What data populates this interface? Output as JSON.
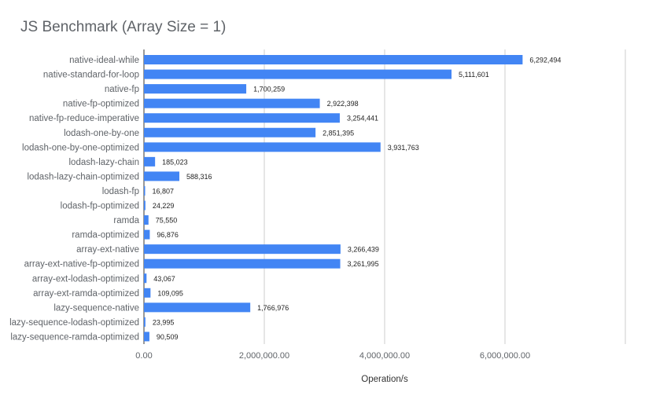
{
  "chart_data": {
    "type": "bar",
    "orientation": "horizontal",
    "title": "JS Benchmark (Array Size = 1)",
    "xlabel": "Operation/s",
    "ylabel": "",
    "xlim": [
      0,
      8000000
    ],
    "x_ticks": [
      0,
      2000000,
      4000000,
      6000000,
      8000000
    ],
    "x_tick_labels": [
      "0.00",
      "2,000,000.00",
      "4,000,000.00",
      "6,000,000.00",
      ""
    ],
    "grid": true,
    "legend": "none",
    "bar_color": "#4285f4",
    "categories": [
      "native-ideal-while",
      "native-standard-for-loop",
      "native-fp",
      "native-fp-optimized",
      "native-fp-reduce-imperative",
      "lodash-one-by-one",
      "lodash-one-by-one-optimized",
      "lodash-lazy-chain",
      "lodash-lazy-chain-optimized",
      "lodash-fp",
      "lodash-fp-optimized",
      "ramda",
      "ramda-optimized",
      "array-ext-native",
      "array-ext-native-fp-optimized",
      "array-ext-lodash-optimized",
      "array-ext-ramda-optimized",
      "lazy-sequence-native",
      "lazy-sequence-lodash-optimized",
      "lazy-sequence-ramda-optimized"
    ],
    "values": [
      6292494,
      5111601,
      1700259,
      2922398,
      3254441,
      2851395,
      3931763,
      185023,
      588316,
      16807,
      24229,
      75550,
      96876,
      3266439,
      3261995,
      43067,
      109095,
      1766976,
      23995,
      90509
    ],
    "value_labels": [
      "6,292,494",
      "5,111,601",
      "1,700,259",
      "2,922,398",
      "3,254,441",
      "2,851,395",
      "3,931,763",
      "185,023",
      "588,316",
      "16,807",
      "24,229",
      "75,550",
      "96,876",
      "3,266,439",
      "3,261,995",
      "43,067",
      "109,095",
      "1,766,976",
      "23,995",
      "90,509"
    ]
  }
}
